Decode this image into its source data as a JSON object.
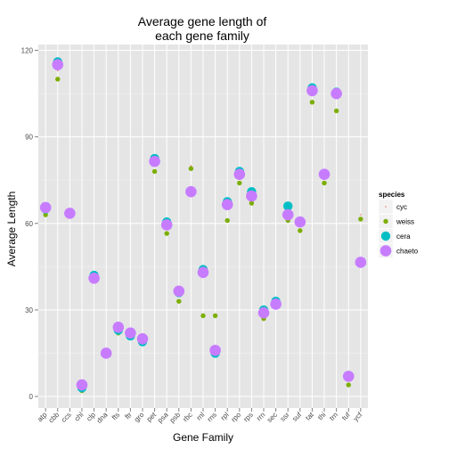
{
  "chart_data": {
    "type": "scatter",
    "title_lines": [
      "Average gene length of",
      "each gene family"
    ],
    "xlabel": "Gene Family",
    "ylabel": "Average Length",
    "ylim": [
      -4,
      122
    ],
    "yticks": [
      0,
      30,
      60,
      90,
      120
    ],
    "grid": true,
    "legend_position": "right",
    "legend_title": "species",
    "categories": [
      "atp",
      "cbb",
      "ccs",
      "chl",
      "clp",
      "dna",
      "fts",
      "ftr",
      "gro",
      "pet",
      "psa",
      "psb",
      "rbc",
      "rnl",
      "rns",
      "rpl",
      "rpo",
      "rps",
      "rrn",
      "sec",
      "ssr",
      "suf",
      "tat",
      "thi",
      "trn",
      "tuf",
      "ycf"
    ],
    "series": [
      {
        "name": "cyc",
        "color": "#F8766D",
        "values": [
          64,
          113,
          64,
          3,
          41,
          15,
          23,
          22,
          19,
          82,
          59,
          36,
          80,
          44,
          15,
          67,
          78,
          70,
          27,
          32,
          65,
          60,
          106,
          77,
          105,
          6,
          63
        ]
      },
      {
        "name": "weiss",
        "color": "#7CAE00",
        "values": [
          63,
          110,
          63,
          2,
          41,
          14,
          22,
          21,
          19,
          78,
          56.5,
          33,
          79,
          28,
          28,
          61,
          74,
          67,
          27,
          32,
          61,
          57.5,
          102,
          74,
          99,
          4,
          61.5
        ]
      },
      {
        "name": "cera",
        "color": "#00BFC4",
        "values": [
          65,
          116,
          63.5,
          3,
          42,
          15,
          23,
          21,
          19,
          82.5,
          60.5,
          36,
          71,
          44,
          15,
          67.5,
          78,
          71,
          30,
          33,
          66,
          60.5,
          107,
          77,
          105.5,
          7,
          46.5
        ]
      },
      {
        "name": "chaeto",
        "color": "#C77CFF",
        "values": [
          65.5,
          115,
          63.5,
          4,
          41,
          15,
          24,
          22,
          20,
          81.5,
          59.5,
          36.5,
          71,
          43,
          16,
          66.5,
          77,
          69.5,
          29,
          32,
          63,
          60.5,
          106,
          77,
          105,
          7,
          46.5
        ]
      }
    ]
  }
}
